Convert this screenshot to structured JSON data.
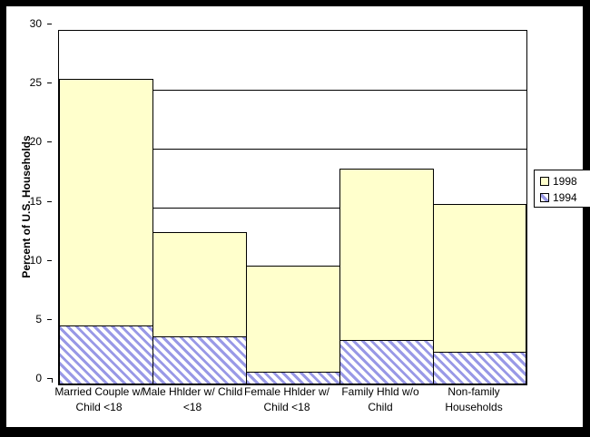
{
  "chart_data": {
    "type": "bar",
    "subtype": "overlapped-columns",
    "title": "",
    "xlabel": "",
    "ylabel": "Percent of U.S. Households",
    "ylim": [
      0,
      30
    ],
    "ytick_interval": 5,
    "yticks": [
      0,
      5,
      10,
      15,
      20,
      25,
      30
    ],
    "grid": "horizontal",
    "legend_position": "right",
    "categories": [
      "Married Couple w/ Child <18",
      "Male Hhlder w/ Child <18",
      "Female Hhlder w/ Child <18",
      "Family Hhld w/o Child",
      "Non-family Households"
    ],
    "category_label_lines": [
      [
        "Married Couple w/",
        "Child <18"
      ],
      [
        "Male Hhlder w/ Child",
        "<18"
      ],
      [
        "Female Hhlder w/",
        "Child <18"
      ],
      [
        "Family Hhld w/o",
        "Child"
      ],
      [
        "Non-family",
        "Households"
      ]
    ],
    "series": [
      {
        "name": "1998",
        "values": [
          25.9,
          12.9,
          10.1,
          18.3,
          15.3
        ],
        "fill": "#ffffcc",
        "pattern": "solid"
      },
      {
        "name": "1994",
        "values": [
          5.0,
          4.1,
          1.1,
          3.8,
          2.8
        ],
        "fill": "#9999e6",
        "pattern": "diagonal-down-stripes"
      }
    ],
    "colors": {
      "bar_border": "#000000",
      "hatch_stripe": "#9999e6",
      "fill_1998": "#ffffcc",
      "plot_background": "#ffffff",
      "frame": "#000000",
      "text": "#000000"
    }
  }
}
